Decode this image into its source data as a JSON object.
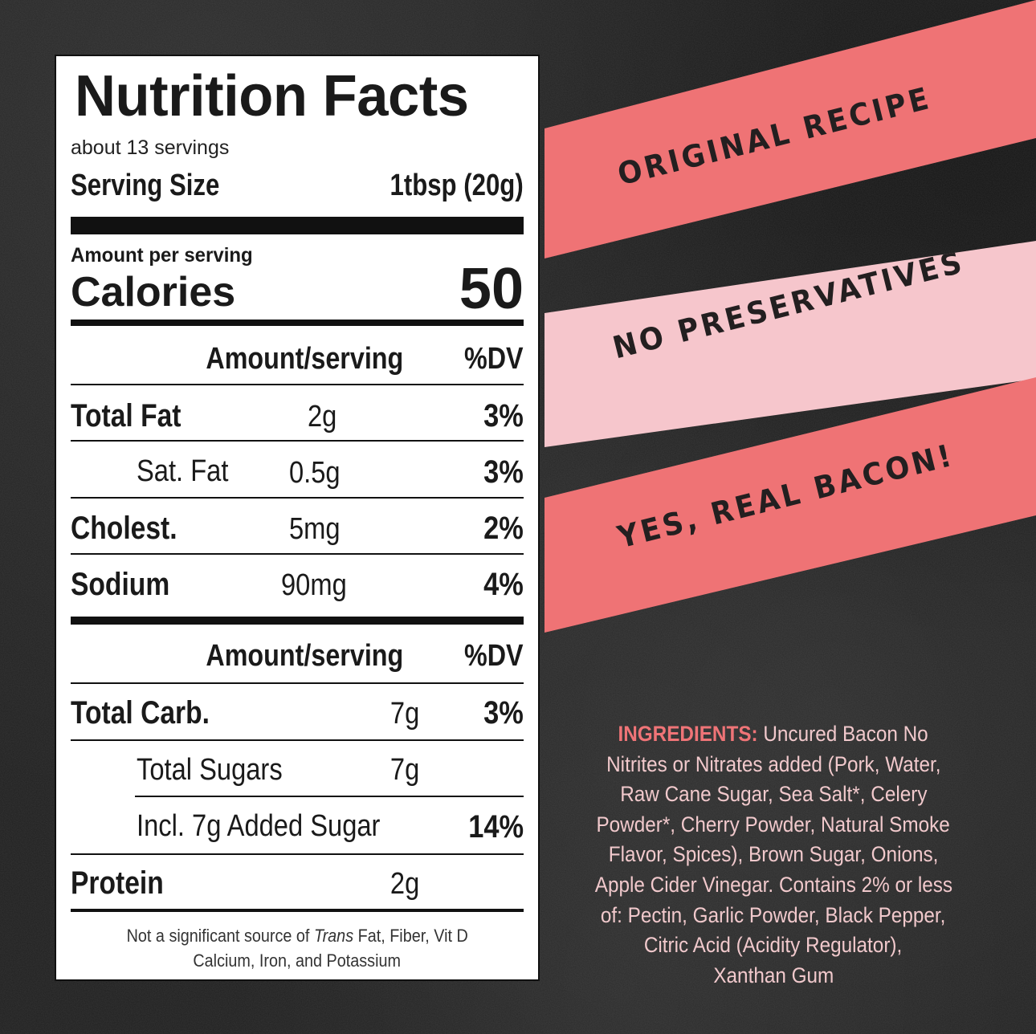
{
  "colors": {
    "background": "#1f1f1f",
    "banner_coral": "#ef7375",
    "banner_pink": "#f6c6cc",
    "banner_text": "#231f20",
    "ingredients_heading": "#ef7477",
    "ingredients_text": "#f1c9cc"
  },
  "nutrition": {
    "title": "Nutrition Facts",
    "servings": "about 13 servings",
    "serving_size_label": "Serving Size",
    "serving_size_value": "1tbsp (20g)",
    "amount_per_serving": "Amount per serving",
    "calories_label": "Calories",
    "calories_value": "50",
    "header1": {
      "amount": "Amount/serving",
      "dv": "%DV"
    },
    "header2": {
      "amount": "Amount/serving",
      "dv": "%DV"
    },
    "rows1": [
      {
        "name": "Total Fat",
        "amount": "2g",
        "dv": "3%"
      },
      {
        "name": "Sat. Fat",
        "amount": "0.5g",
        "dv": "3%"
      },
      {
        "name": "Cholest.",
        "amount": "5mg",
        "dv": "2%"
      },
      {
        "name": "Sodium",
        "amount": "90mg",
        "dv": "4%"
      }
    ],
    "rows2": [
      {
        "name": "Total Carb.",
        "amount": "7g",
        "dv": "3%"
      },
      {
        "name": "Total Sugars",
        "amount": "7g",
        "dv": ""
      },
      {
        "name": "Incl. 7g Added Sugar",
        "amount": "",
        "dv": "14%"
      },
      {
        "name": "Protein",
        "amount": "2g",
        "dv": ""
      }
    ],
    "footnote": {
      "prefix": "Not a significant source of ",
      "trans": "Trans",
      "rest": " Fat, Fiber, Vit D",
      "line2": "Calcium, Iron, and Potassium"
    }
  },
  "banners": [
    {
      "text": "ORIGINAL RECIPE",
      "color": "#ef7375"
    },
    {
      "text": "NO PRESERVATIVES",
      "color": "#f6c6cc"
    },
    {
      "text": "YES, REAL BACON!",
      "color": "#ef7375"
    }
  ],
  "ingredients": {
    "heading": "INGREDIENTS:",
    "lines": [
      " Uncured Bacon No",
      "Nitrites or Nitrates added (Pork, Water,",
      "Raw Cane Sugar, Sea Salt*, Celery",
      "Powder*, Cherry Powder, Natural Smoke",
      "Flavor, Spices), Brown Sugar, Onions,",
      "Apple Cider Vinegar. Contains 2% or less",
      "of: Pectin, Garlic Powder, Black Pepper,",
      "Citric Acid (Acidity Regulator),",
      "Xanthan Gum"
    ]
  }
}
